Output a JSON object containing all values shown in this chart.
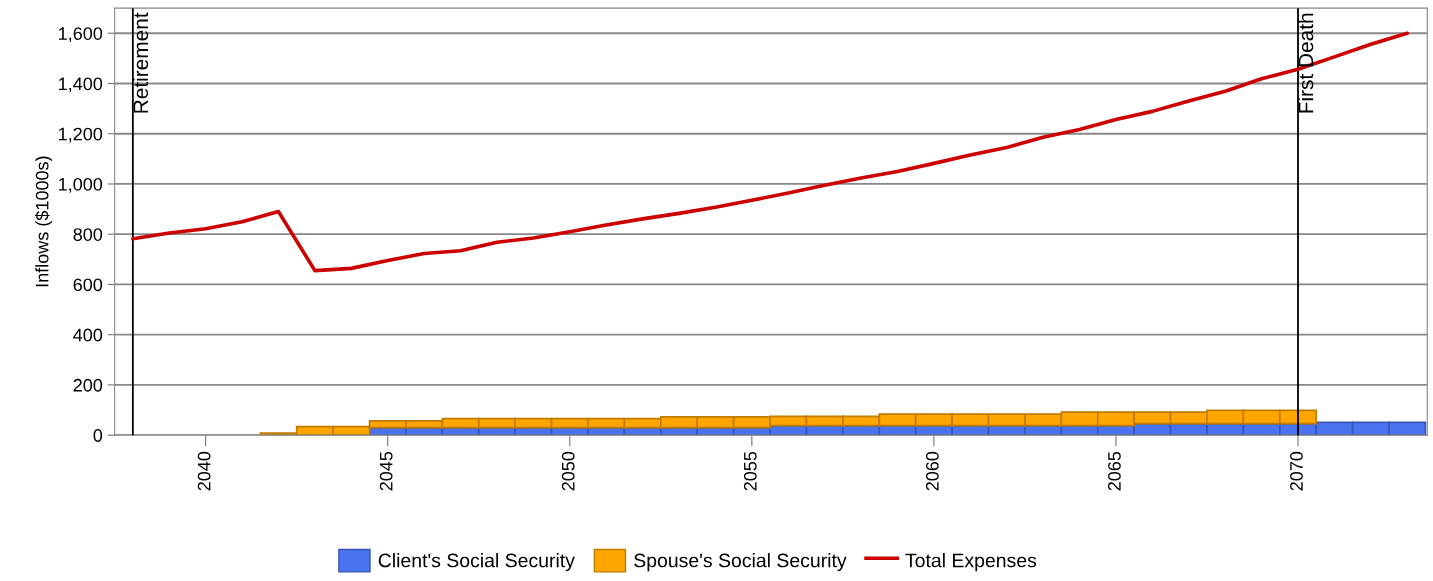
{
  "chart_data": {
    "type": "bar",
    "stacked": true,
    "ylabel": "Inflows ($1000s)",
    "x": [
      2038,
      2039,
      2040,
      2041,
      2042,
      2043,
      2044,
      2045,
      2046,
      2047,
      2048,
      2049,
      2050,
      2051,
      2052,
      2053,
      2054,
      2055,
      2056,
      2057,
      2058,
      2059,
      2060,
      2061,
      2062,
      2063,
      2064,
      2065,
      2066,
      2067,
      2068,
      2069,
      2070,
      2071,
      2072,
      2073
    ],
    "series": [
      {
        "name": "Client's Social Security",
        "color": "#4a73ef",
        "values": [
          0,
          0,
          0,
          0,
          0,
          0,
          0,
          30,
          30,
          30,
          30,
          30,
          30,
          30,
          30,
          30,
          30,
          30,
          38,
          38,
          38,
          38,
          38,
          38,
          38,
          38,
          38,
          38,
          46,
          46,
          46,
          46,
          46,
          51,
          51,
          51
        ]
      },
      {
        "name": "Spouse's Social Security",
        "color": "#ffa500",
        "values": [
          0,
          0,
          0,
          0,
          8,
          34,
          34,
          27,
          27,
          36,
          36,
          36,
          36,
          36,
          36,
          43,
          43,
          43,
          37,
          37,
          37,
          46,
          46,
          46,
          46,
          46,
          54,
          54,
          46,
          46,
          53,
          53,
          53,
          0,
          0,
          0
        ]
      },
      {
        "name": "Total Expenses",
        "type": "line",
        "color": "#cc0000",
        "x": [
          2038,
          2039,
          2040,
          2041,
          2042,
          2043,
          2044,
          2045,
          2046,
          2047,
          2048,
          2049,
          2050,
          2051,
          2052,
          2053,
          2054,
          2055,
          2056,
          2057,
          2058,
          2059,
          2060,
          2061,
          2062,
          2063,
          2064,
          2065,
          2066,
          2067,
          2068,
          2069,
          2070,
          2071,
          2072,
          2073
        ],
        "values": [
          782,
          805,
          822,
          850,
          890,
          655,
          664,
          695,
          723,
          734,
          768,
          785,
          810,
          837,
          861,
          883,
          907,
          935,
          964,
          995,
          1024,
          1050,
          1082,
          1115,
          1145,
          1186,
          1217,
          1257,
          1289,
          1330,
          1369,
          1419,
          1457,
          1506,
          1556,
          1600
        ]
      }
    ],
    "xlim": [
      2037.5,
      2073.55
    ],
    "xticks": [
      2040,
      2045,
      2050,
      2055,
      2060,
      2065,
      2070
    ],
    "ylim": [
      0,
      1700
    ],
    "yticks": [
      0,
      200,
      400,
      600,
      800,
      {
        "value": 1000,
        "label": "1,000"
      },
      {
        "value": 1200,
        "label": "1,200"
      },
      {
        "value": 1400,
        "label": "1,400"
      },
      {
        "value": 1600,
        "label": "1,600"
      }
    ],
    "grid": "y",
    "legend": "bottom",
    "ref_lines": [
      {
        "axis": "x",
        "value": 2038,
        "label": "Retirement",
        "color": "#000000"
      },
      {
        "axis": "x",
        "value": 2070,
        "label": "First Death",
        "color": "#000000"
      }
    ]
  }
}
